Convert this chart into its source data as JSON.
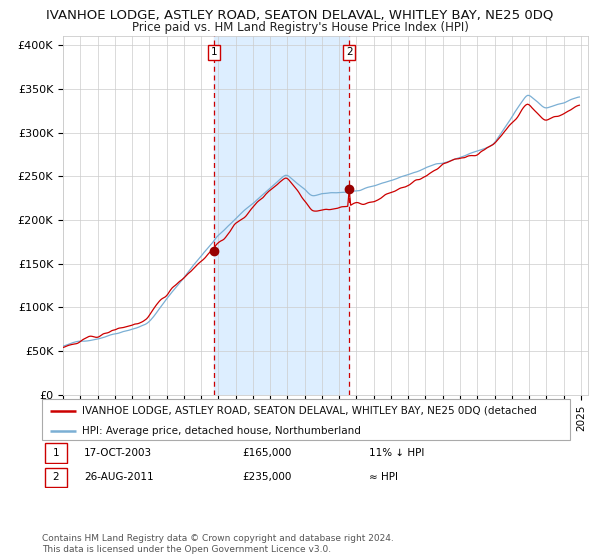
{
  "title": "IVANHOE LODGE, ASTLEY ROAD, SEATON DELAVAL, WHITLEY BAY, NE25 0DQ",
  "subtitle": "Price paid vs. HM Land Registry's House Price Index (HPI)",
  "ylim": [
    0,
    410000
  ],
  "yticks": [
    0,
    50000,
    100000,
    150000,
    200000,
    250000,
    300000,
    350000,
    400000
  ],
  "ytick_labels": [
    "£0",
    "£50K",
    "£100K",
    "£150K",
    "£200K",
    "£250K",
    "£300K",
    "£350K",
    "£400K"
  ],
  "sale1_date": "17-OCT-2003",
  "sale1_price": 165000,
  "sale1_label": "11% ↓ HPI",
  "sale2_date": "26-AUG-2011",
  "sale2_price": 235000,
  "sale2_label": "≈ HPI",
  "legend_property": "IVANHOE LODGE, ASTLEY ROAD, SEATON DELAVAL, WHITLEY BAY, NE25 0DQ (detached",
  "legend_hpi": "HPI: Average price, detached house, Northumberland",
  "footer": "Contains HM Land Registry data © Crown copyright and database right 2024.\nThis data is licensed under the Open Government Licence v3.0.",
  "property_color": "#cc0000",
  "hpi_color": "#7bafd4",
  "shade_color": "#ddeeff",
  "dot_color": "#990000",
  "vline_color": "#cc0000",
  "background_color": "#ffffff",
  "grid_color": "#cccccc",
  "title_fontsize": 9.5,
  "subtitle_fontsize": 8.5,
  "axis_fontsize": 8,
  "legend_fontsize": 7.5,
  "footer_fontsize": 6.5
}
